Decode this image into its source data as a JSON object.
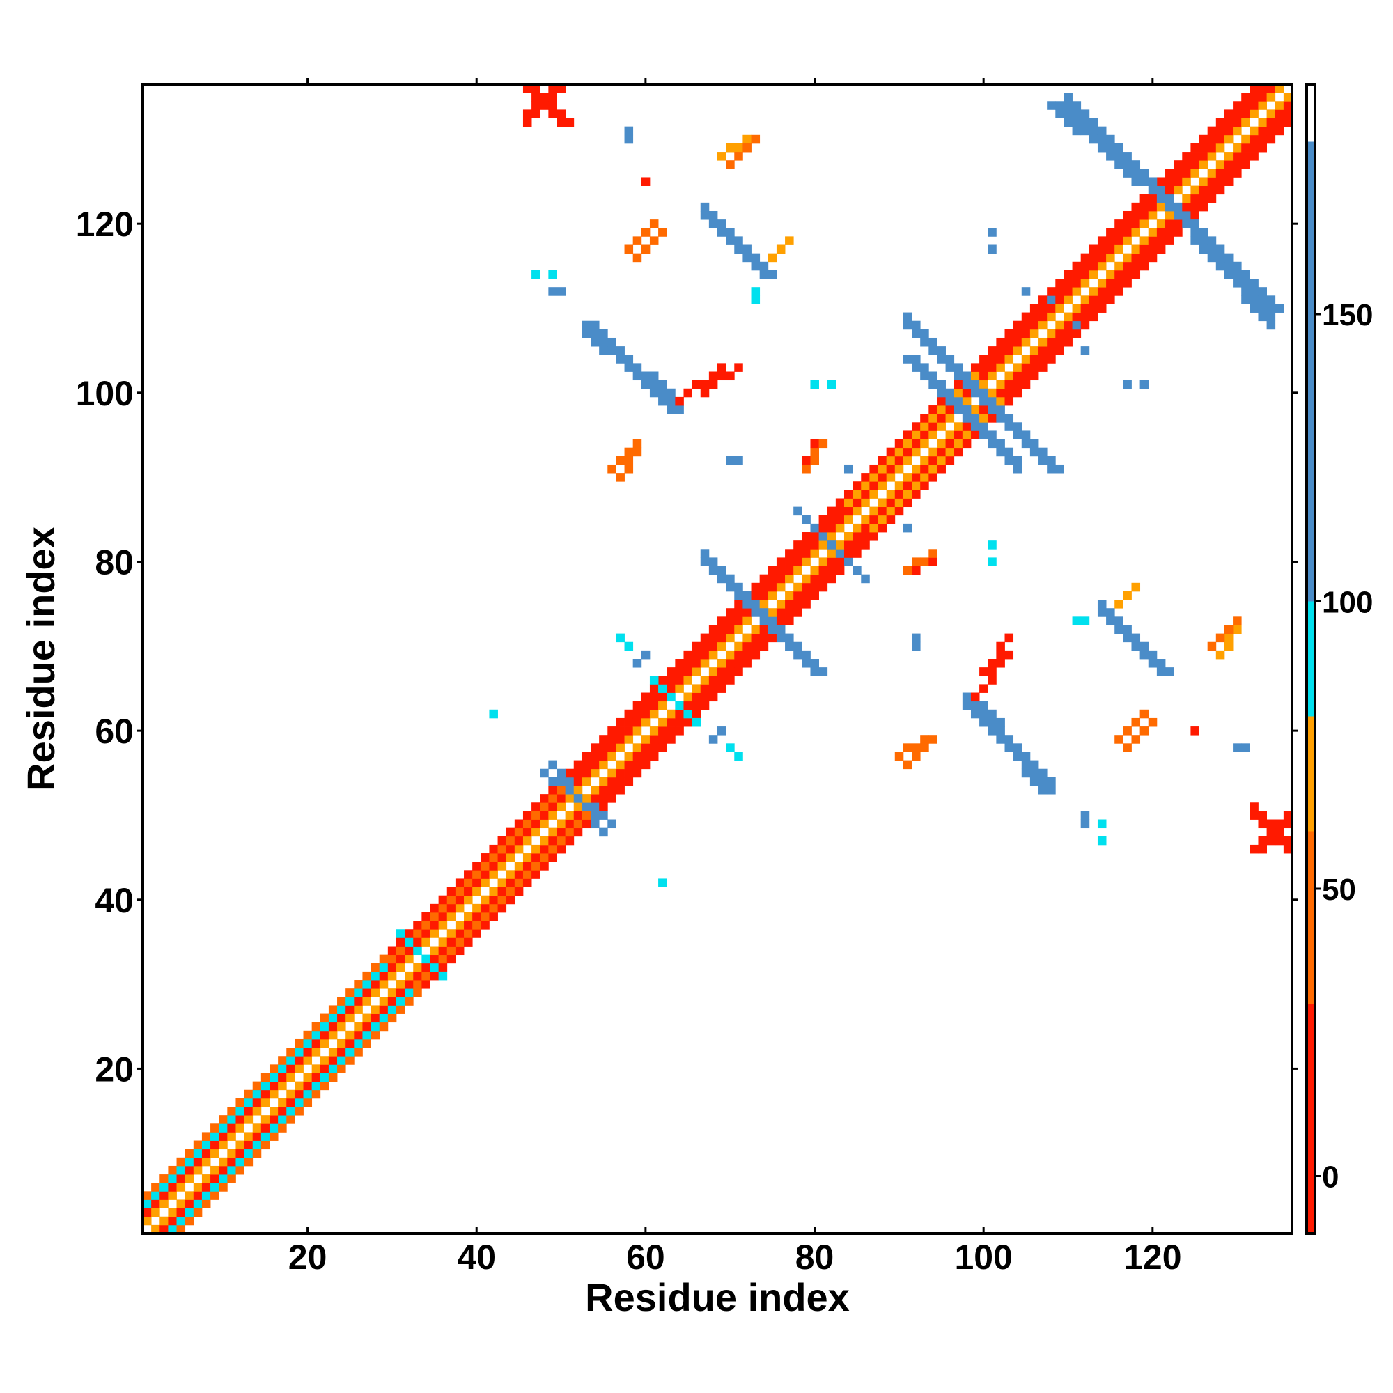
{
  "chart_data": {
    "type": "heatmap",
    "title": "",
    "xlabel": "Residue index",
    "ylabel": "Residue index",
    "xlim": [
      1,
      136
    ],
    "ylim": [
      1,
      136
    ],
    "x_ticks": [
      20,
      40,
      60,
      80,
      100,
      120
    ],
    "y_ticks": [
      20,
      40,
      60,
      80,
      100,
      120
    ],
    "colorbar": {
      "range": [
        -10,
        190
      ],
      "ticks": [
        0,
        50,
        100,
        150
      ],
      "bands": [
        {
          "from": -10,
          "to": 30,
          "color": "#ff1a00"
        },
        {
          "from": 30,
          "to": 60,
          "color": "#ff6a00"
        },
        {
          "from": 60,
          "to": 80,
          "color": "#ffa000"
        },
        {
          "from": 80,
          "to": 100,
          "color": "#00e0ee"
        },
        {
          "from": 100,
          "to": 180,
          "color": "#4a8cc8"
        },
        {
          "from": 180,
          "to": 190,
          "color": "#ffffff"
        }
      ]
    },
    "symmetric": true,
    "cell_colors": {
      "red": "#ff1a00",
      "orange_red": "#ff6a00",
      "orange": "#ffa000",
      "cyan": "#00e0ee",
      "steel_blue": "#4a8cc8"
    },
    "diagonal_pattern": [
      {
        "from": 1,
        "to": 30,
        "offsets": {
          "1": "orange",
          "2": "red",
          "3": "cyan",
          "4": "orange_red"
        }
      },
      {
        "from": 30,
        "to": 52,
        "offsets": {
          "1": "orange",
          "2": "red",
          "3": "orange_red",
          "4": "red"
        }
      },
      {
        "from": 52,
        "to": 84,
        "offsets": {
          "1": "orange",
          "2": "red",
          "3": "red",
          "4": "red"
        }
      },
      {
        "from": 84,
        "to": 100,
        "offsets": {
          "1": "orange",
          "2": "red",
          "3": "orange",
          "4": "red"
        }
      },
      {
        "from": 100,
        "to": 136,
        "offsets": {
          "1": "orange",
          "2": "red",
          "3": "red",
          "4": "red"
        }
      }
    ],
    "segments": [
      {
        "start": [
          98,
          101
        ],
        "end": [
          108,
          91
        ],
        "width": 2,
        "color": "steel_blue"
      },
      {
        "start": [
          91,
          104
        ],
        "end": [
          98,
          97
        ],
        "width": 2,
        "color": "steel_blue"
      },
      {
        "start": [
          53,
          108
        ],
        "end": [
          63,
          98
        ],
        "width": 2,
        "color": "steel_blue"
      },
      {
        "start": [
          67,
          121
        ],
        "end": [
          74,
          114
        ],
        "width": 2,
        "color": "steel_blue"
      },
      {
        "start": [
          108,
          134
        ],
        "end": [
          122,
          122
        ],
        "width": 2,
        "color": "steel_blue"
      },
      {
        "start": [
          122,
          122
        ],
        "end": [
          134,
          110
        ],
        "width": 2,
        "color": "steel_blue"
      },
      {
        "start": [
          67,
          80
        ],
        "end": [
          74,
          73
        ],
        "width": 2,
        "color": "steel_blue"
      },
      {
        "start": [
          74,
          73
        ],
        "end": [
          80,
          67
        ],
        "width": 2,
        "color": "steel_blue"
      },
      {
        "start": [
          99,
          63
        ],
        "end": [
          107,
          53
        ],
        "width": 2,
        "color": "steel_blue"
      },
      {
        "start": [
          114,
          74
        ],
        "end": [
          121,
          67
        ],
        "width": 2,
        "color": "steel_blue"
      },
      {
        "start": [
          80,
          84
        ],
        "end": [
          86,
          78
        ],
        "width": 1,
        "color": "steel_blue"
      },
      {
        "start": [
          49,
          56
        ],
        "end": [
          55,
          48
        ],
        "width": 1,
        "color": "steel_blue"
      },
      {
        "start": [
          61,
          66
        ],
        "end": [
          66,
          61
        ],
        "width": 1,
        "color": "cyan"
      },
      {
        "start": [
          31,
          36
        ],
        "end": [
          35,
          32
        ],
        "width": 1,
        "color": "cyan"
      },
      {
        "start": [
          46,
          136
        ],
        "end": [
          50,
          132
        ],
        "width": 2,
        "color": "red"
      },
      {
        "start": [
          132,
          46
        ],
        "end": [
          136,
          50
        ],
        "width": 2,
        "color": "red"
      },
      {
        "start": [
          58,
          117
        ],
        "end": [
          61,
          120
        ],
        "width": 1,
        "color": "orange_red"
      },
      {
        "start": [
          69,
          128
        ],
        "end": [
          72,
          130
        ],
        "width": 1,
        "color": "orange"
      },
      {
        "start": [
          64,
          99
        ],
        "end": [
          69,
          103
        ],
        "width": 1,
        "color": "red"
      },
      {
        "start": [
          56,
          91
        ],
        "end": [
          59,
          94
        ],
        "width": 1,
        "color": "orange_red"
      },
      {
        "start": [
          79,
          92
        ],
        "end": [
          80,
          94
        ],
        "width": 1,
        "color": "red"
      },
      {
        "start": [
          91,
          79
        ],
        "end": [
          94,
          81
        ],
        "width": 1,
        "color": "orange_red"
      },
      {
        "start": [
          100,
          67
        ],
        "end": [
          103,
          71
        ],
        "width": 1,
        "color": "red"
      },
      {
        "start": [
          116,
          59
        ],
        "end": [
          119,
          62
        ],
        "width": 1,
        "color": "orange_red"
      },
      {
        "start": [
          90,
          57
        ],
        "end": [
          94,
          59
        ],
        "width": 1,
        "color": "orange_red"
      },
      {
        "start": [
          127,
          70
        ],
        "end": [
          130,
          73
        ],
        "width": 1,
        "color": "orange_red"
      },
      {
        "start": [
          116,
          75
        ],
        "end": [
          118,
          77
        ],
        "width": 1,
        "color": "orange"
      }
    ],
    "points": [
      {
        "x": 58,
        "y": 130,
        "color": "steel_blue"
      },
      {
        "x": 49,
        "y": 114,
        "color": "cyan"
      },
      {
        "x": 50,
        "y": 112,
        "color": "steel_blue"
      },
      {
        "x": 73,
        "y": 111,
        "color": "cyan"
      },
      {
        "x": 82,
        "y": 101,
        "color": "cyan"
      },
      {
        "x": 71,
        "y": 92,
        "color": "steel_blue"
      },
      {
        "x": 84,
        "y": 91,
        "color": "steel_blue"
      },
      {
        "x": 91,
        "y": 84,
        "color": "steel_blue"
      },
      {
        "x": 101,
        "y": 119,
        "color": "steel_blue"
      },
      {
        "x": 108,
        "y": 111,
        "color": "steel_blue"
      },
      {
        "x": 112,
        "y": 105,
        "color": "steel_blue"
      },
      {
        "x": 117,
        "y": 101,
        "color": "steel_blue"
      },
      {
        "x": 101,
        "y": 80,
        "color": "cyan"
      },
      {
        "x": 58,
        "y": 70,
        "color": "cyan"
      },
      {
        "x": 60,
        "y": 69,
        "color": "steel_blue"
      },
      {
        "x": 92,
        "y": 70,
        "color": "steel_blue"
      },
      {
        "x": 42,
        "y": 62,
        "color": "cyan"
      },
      {
        "x": 68,
        "y": 59,
        "color": "steel_blue"
      },
      {
        "x": 71,
        "y": 57,
        "color": "cyan"
      },
      {
        "x": 62,
        "y": 42,
        "color": "cyan"
      },
      {
        "x": 112,
        "y": 49,
        "color": "steel_blue"
      },
      {
        "x": 114,
        "y": 47,
        "color": "cyan"
      },
      {
        "x": 131,
        "y": 58,
        "color": "steel_blue"
      },
      {
        "x": 60,
        "y": 125,
        "color": "red"
      },
      {
        "x": 112,
        "y": 73,
        "color": "cyan"
      }
    ]
  }
}
